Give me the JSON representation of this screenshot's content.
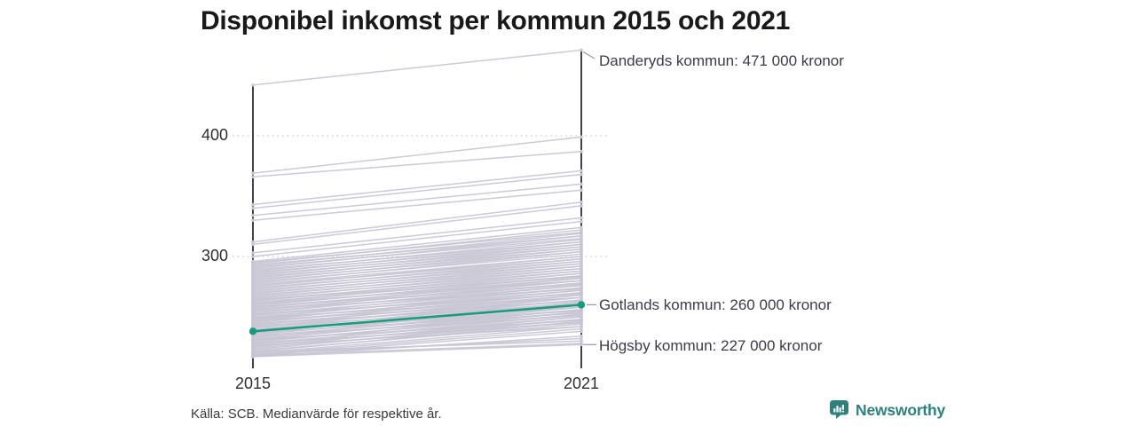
{
  "title": "Disponibel inkomst per kommun 2015 och 2021",
  "axis": {
    "y": [
      "400",
      "300"
    ],
    "x": [
      "2015",
      "2021"
    ]
  },
  "annotations": {
    "top": "Danderyds kommun: 471 000 kronor",
    "highlight": "Gotlands kommun: 260 000 kronor",
    "bottom": "Högsby kommun: 227 000 kronor"
  },
  "footer": {
    "source": "Källa: SCB. Medianvärde för respektive år.",
    "brand": "Newsworthy"
  },
  "colors": {
    "line": "#c7c4d3",
    "highlight": "#1a9a7e",
    "axis": "#222222",
    "grid": "#d2d2d2",
    "connector": "#9a99a6",
    "brand": "#2e807d"
  },
  "chart_data": {
    "type": "line",
    "subtype": "slope",
    "x": [
      2015,
      2021
    ],
    "unit": "1000 kronor (medianvärde per kommun)",
    "yticks": [
      400,
      300
    ],
    "ylim": [
      210,
      480
    ],
    "grid": "dotted",
    "highlight": {
      "name": "Gotlands kommun",
      "values": [
        238,
        260
      ],
      "label": "Gotlands kommun: 260 000 kronor"
    },
    "annotated": [
      {
        "name": "Danderyds kommun",
        "values": [
          442,
          471
        ],
        "label": "Danderyds kommun: 471 000 kronor"
      },
      {
        "name": "Högsby kommun",
        "values": [
          217,
          227
        ],
        "label": "Högsby kommun: 227 000 kronor"
      }
    ],
    "background_lines": [
      [
        369,
        399
      ],
      [
        366,
        387
      ],
      [
        343,
        371
      ],
      [
        340,
        368
      ],
      [
        334,
        360
      ],
      [
        330,
        355
      ],
      [
        312,
        345
      ],
      [
        310,
        342
      ],
      [
        303,
        332
      ],
      [
        300,
        329
      ],
      [
        296,
        324
      ],
      [
        295,
        320
      ],
      [
        294,
        322
      ],
      [
        293,
        317
      ],
      [
        292,
        319
      ],
      [
        291,
        315
      ],
      [
        290,
        317
      ],
      [
        289,
        312
      ],
      [
        288,
        314
      ],
      [
        287,
        310
      ],
      [
        286,
        312
      ],
      [
        285,
        308
      ],
      [
        284,
        310
      ],
      [
        283,
        306
      ],
      [
        282,
        308
      ],
      [
        281,
        304
      ],
      [
        280,
        306
      ],
      [
        279,
        302
      ],
      [
        278,
        304
      ],
      [
        277,
        300
      ],
      [
        276,
        298
      ],
      [
        275,
        300
      ],
      [
        274,
        296
      ],
      [
        273,
        298
      ],
      [
        272,
        294
      ],
      [
        271,
        296
      ],
      [
        270,
        292
      ],
      [
        269,
        294
      ],
      [
        268,
        290
      ],
      [
        267,
        292
      ],
      [
        266,
        288
      ],
      [
        265,
        290
      ],
      [
        264,
        286
      ],
      [
        263,
        288
      ],
      [
        262,
        284
      ],
      [
        261,
        286
      ],
      [
        260,
        282
      ],
      [
        259,
        284
      ],
      [
        258,
        280
      ],
      [
        257,
        282
      ],
      [
        256,
        278
      ],
      [
        255,
        280
      ],
      [
        254,
        276
      ],
      [
        253,
        278
      ],
      [
        252,
        274
      ],
      [
        251,
        276
      ],
      [
        250,
        272
      ],
      [
        249,
        274
      ],
      [
        248,
        270
      ],
      [
        247,
        272
      ],
      [
        246,
        268
      ],
      [
        245,
        270
      ],
      [
        244,
        266
      ],
      [
        243,
        268
      ],
      [
        242,
        264
      ],
      [
        241,
        266
      ],
      [
        240,
        262
      ],
      [
        239,
        264
      ],
      [
        238,
        260
      ],
      [
        237,
        262
      ],
      [
        236,
        258
      ],
      [
        235,
        260
      ],
      [
        234,
        256
      ],
      [
        233,
        258
      ],
      [
        232,
        254
      ],
      [
        231,
        256
      ],
      [
        230,
        252
      ],
      [
        229,
        254
      ],
      [
        228,
        250
      ],
      [
        227,
        252
      ],
      [
        226,
        248
      ],
      [
        225,
        250
      ],
      [
        224,
        246
      ],
      [
        223,
        248
      ],
      [
        222,
        244
      ],
      [
        221,
        246
      ],
      [
        220,
        242
      ],
      [
        219,
        240
      ],
      [
        218,
        238
      ],
      [
        217,
        234
      ],
      [
        219,
        232
      ],
      [
        221,
        230
      ],
      [
        218,
        228
      ],
      [
        264,
        283
      ],
      [
        261,
        280
      ],
      [
        258,
        277
      ],
      [
        256,
        273
      ],
      [
        252,
        269
      ],
      [
        249,
        266
      ],
      [
        247,
        263
      ],
      [
        244,
        261
      ],
      [
        242,
        258
      ],
      [
        239,
        255
      ],
      [
        237,
        253
      ],
      [
        234,
        251
      ],
      [
        231,
        247
      ],
      [
        228,
        245
      ],
      [
        226,
        242
      ]
    ]
  }
}
